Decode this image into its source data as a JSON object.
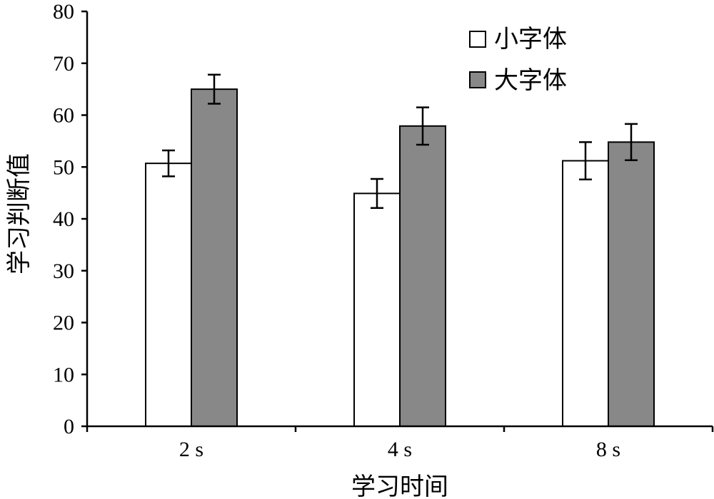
{
  "chart_data": {
    "type": "bar",
    "categories": [
      "2 s",
      "4 s",
      "8 s"
    ],
    "series": [
      {
        "name": "小字体",
        "values": [
          50.7,
          44.9,
          51.2
        ],
        "errors": [
          2.5,
          2.8,
          3.6
        ],
        "color": "#ffffff"
      },
      {
        "name": "大字体",
        "values": [
          65.0,
          57.9,
          54.8
        ],
        "errors": [
          2.8,
          3.6,
          3.5
        ],
        "color": "#888888"
      }
    ],
    "xlabel": "学习时间",
    "ylabel": "学习判断值",
    "ylim": [
      0,
      80
    ],
    "yticks": [
      0,
      10,
      20,
      30,
      40,
      50,
      60,
      70,
      80
    ],
    "grid": false,
    "legend_position": "top-right"
  }
}
